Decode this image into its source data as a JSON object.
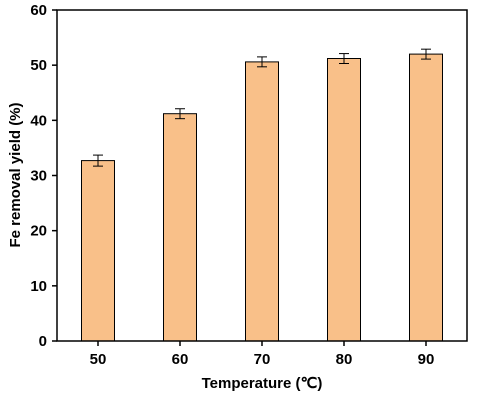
{
  "chart_data": {
    "type": "bar",
    "title": "",
    "xlabel": "Temperature (℃)",
    "ylabel": "Fe removal yield (%)",
    "categories": [
      "50",
      "60",
      "70",
      "80",
      "90"
    ],
    "values": [
      32.7,
      41.2,
      50.6,
      51.2,
      52.0
    ],
    "errors": [
      1.0,
      0.9,
      0.9,
      0.9,
      0.9
    ],
    "ylim": [
      0,
      60
    ],
    "yticks": [
      "0",
      "10",
      "20",
      "30",
      "40",
      "50",
      "60"
    ],
    "grid": false,
    "legend": "none",
    "colors": {
      "bar_fill": "#F9C089",
      "bar_edge": "#000000",
      "error_bar": "#000000",
      "axis": "#000000"
    }
  }
}
